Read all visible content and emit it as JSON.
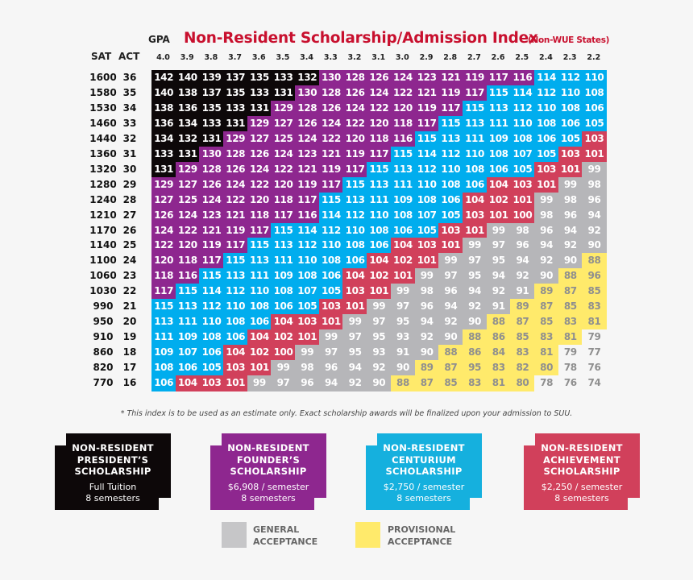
{
  "header": {
    "gpa_label": "GPA",
    "title": "Non-Resident Scholarship/Admission Index",
    "subtitle": "(Non-WUE States)",
    "sat_label": "SAT",
    "act_label": "ACT"
  },
  "chart_data": {
    "type": "table",
    "gpa": [
      "4.0",
      "3.9",
      "3.8",
      "3.7",
      "3.6",
      "3.5",
      "3.4",
      "3.3",
      "3.2",
      "3.1",
      "3.0",
      "2.9",
      "2.8",
      "2.7",
      "2.6",
      "2.5",
      "2.4",
      "2.3",
      "2.2"
    ],
    "rows": [
      {
        "sat": "1600",
        "act": "36",
        "values": [
          142,
          140,
          139,
          137,
          135,
          133,
          132,
          130,
          128,
          126,
          124,
          123,
          121,
          119,
          117,
          116,
          114,
          112,
          110
        ]
      },
      {
        "sat": "1580",
        "act": "35",
        "values": [
          140,
          138,
          137,
          135,
          133,
          131,
          130,
          128,
          126,
          124,
          122,
          121,
          119,
          117,
          115,
          114,
          112,
          110,
          108
        ]
      },
      {
        "sat": "1530",
        "act": "34",
        "values": [
          138,
          136,
          135,
          133,
          131,
          129,
          128,
          126,
          124,
          122,
          120,
          119,
          117,
          115,
          113,
          112,
          110,
          108,
          106
        ]
      },
      {
        "sat": "1460",
        "act": "33",
        "values": [
          136,
          134,
          133,
          131,
          129,
          127,
          126,
          124,
          122,
          120,
          118,
          117,
          115,
          113,
          111,
          110,
          108,
          106,
          105
        ]
      },
      {
        "sat": "1440",
        "act": "32",
        "values": [
          134,
          132,
          131,
          129,
          127,
          125,
          124,
          122,
          120,
          118,
          116,
          115,
          113,
          111,
          109,
          108,
          106,
          105,
          103
        ]
      },
      {
        "sat": "1360",
        "act": "31",
        "values": [
          133,
          131,
          130,
          128,
          126,
          124,
          123,
          121,
          119,
          117,
          115,
          114,
          112,
          110,
          108,
          107,
          105,
          103,
          101
        ]
      },
      {
        "sat": "1320",
        "act": "30",
        "values": [
          131,
          129,
          128,
          126,
          124,
          122,
          121,
          119,
          117,
          115,
          113,
          112,
          110,
          108,
          106,
          105,
          103,
          101,
          99
        ]
      },
      {
        "sat": "1280",
        "act": "29",
        "values": [
          129,
          127,
          126,
          124,
          122,
          120,
          119,
          117,
          115,
          113,
          111,
          110,
          108,
          106,
          104,
          103,
          101,
          99,
          98
        ]
      },
      {
        "sat": "1240",
        "act": "28",
        "values": [
          127,
          125,
          124,
          122,
          120,
          118,
          117,
          115,
          113,
          111,
          109,
          108,
          106,
          104,
          102,
          101,
          99,
          98,
          96
        ]
      },
      {
        "sat": "1210",
        "act": "27",
        "values": [
          126,
          124,
          123,
          121,
          118,
          117,
          116,
          114,
          112,
          110,
          108,
          107,
          105,
          103,
          101,
          100,
          98,
          96,
          94
        ]
      },
      {
        "sat": "1170",
        "act": "26",
        "values": [
          124,
          122,
          121,
          119,
          117,
          115,
          114,
          112,
          110,
          108,
          106,
          105,
          103,
          101,
          99,
          98,
          96,
          94,
          92
        ]
      },
      {
        "sat": "1140",
        "act": "25",
        "values": [
          122,
          120,
          119,
          117,
          115,
          113,
          112,
          110,
          108,
          106,
          104,
          103,
          101,
          99,
          97,
          96,
          94,
          92,
          90
        ]
      },
      {
        "sat": "1100",
        "act": "24",
        "values": [
          120,
          118,
          117,
          115,
          113,
          111,
          110,
          108,
          106,
          104,
          102,
          101,
          99,
          97,
          95,
          94,
          92,
          90,
          88
        ]
      },
      {
        "sat": "1060",
        "act": "23",
        "values": [
          118,
          116,
          115,
          113,
          111,
          109,
          108,
          106,
          104,
          102,
          101,
          99,
          97,
          95,
          94,
          92,
          90,
          88,
          96
        ]
      },
      {
        "sat": "1030",
        "act": "22",
        "values": [
          117,
          115,
          114,
          112,
          110,
          108,
          107,
          105,
          103,
          101,
          99,
          98,
          96,
          94,
          92,
          91,
          89,
          87,
          85
        ]
      },
      {
        "sat": "990",
        "act": "21",
        "values": [
          115,
          113,
          112,
          110,
          108,
          106,
          105,
          103,
          101,
          99,
          97,
          96,
          94,
          92,
          91,
          89,
          87,
          85,
          83
        ]
      },
      {
        "sat": "950",
        "act": "20",
        "values": [
          113,
          111,
          110,
          108,
          106,
          104,
          103,
          101,
          99,
          97,
          95,
          94,
          92,
          90,
          88,
          87,
          85,
          83,
          81
        ]
      },
      {
        "sat": "910",
        "act": "19",
        "values": [
          111,
          109,
          108,
          106,
          104,
          102,
          101,
          99,
          97,
          95,
          93,
          92,
          90,
          88,
          86,
          85,
          83,
          81,
          79
        ]
      },
      {
        "sat": "860",
        "act": "18",
        "values": [
          109,
          107,
          106,
          104,
          102,
          100,
          99,
          97,
          95,
          93,
          91,
          90,
          88,
          86,
          84,
          83,
          81,
          79,
          77
        ]
      },
      {
        "sat": "820",
        "act": "17",
        "values": [
          108,
          106,
          105,
          103,
          101,
          99,
          98,
          96,
          94,
          92,
          90,
          89,
          87,
          95,
          83,
          82,
          80,
          78,
          76
        ]
      },
      {
        "sat": "770",
        "act": "16",
        "values": [
          106,
          104,
          103,
          101,
          99,
          97,
          96,
          94,
          92,
          90,
          88,
          87,
          85,
          83,
          81,
          80,
          78,
          76,
          74
        ]
      }
    ],
    "tiers": [
      {
        "id": "president",
        "min": 131,
        "color": "#0d0809",
        "text": "#ffffff"
      },
      {
        "id": "founder",
        "min": 116,
        "color": "#8e278f",
        "text": "#ffffff"
      },
      {
        "id": "centurium",
        "min": 105,
        "color": "#00adee",
        "text": "#ffffff"
      },
      {
        "id": "achievement",
        "min": 100,
        "color": "#d1405b",
        "text": "#ffffff"
      },
      {
        "id": "general",
        "min": 90,
        "color": "#b6b6b9",
        "text": "#ffffff"
      },
      {
        "id": "provisional",
        "min": 80,
        "color": "#ffea6b",
        "text": "#8f8f8f"
      },
      {
        "id": "none",
        "min": 0,
        "color": "#f6f6f6",
        "text": "#8f8f8f"
      }
    ],
    "tier_overrides": [
      {
        "sat": "1060",
        "gpa": "2.2",
        "tier": "provisional"
      },
      {
        "sat": "820",
        "gpa": "2.7",
        "tier": "provisional"
      }
    ]
  },
  "footnote": "* This index is to be used as an estimate only. Exact scholarship awards will be finalized upon your admission to SUU.",
  "awards": [
    {
      "name1": "NON-RESIDENT",
      "name2": "PRESIDENT’S",
      "name3": "SCHOLARSHIP",
      "amount": "Full Tuition",
      "duration": "8 semesters",
      "color": "#0d0809"
    },
    {
      "name1": "NON-RESIDENT",
      "name2": "FOUNDER’S",
      "name3": "SCHOLARSHIP",
      "amount": "$6,908 / semester",
      "duration": "8 semesters",
      "color": "#8e278f"
    },
    {
      "name1": "NON-RESIDENT",
      "name2": "CENTURIUM",
      "name3": "SCHOLARSHIP",
      "amount": "$2,750 / semester",
      "duration": "8 semesters",
      "color": "#15b0de"
    },
    {
      "name1": "NON-RESIDENT",
      "name2": "ACHIEVEMENT",
      "name3": "SCHOLARSHIP",
      "amount": "$2,250 / semester",
      "duration": "8 semesters",
      "color": "#d1405b"
    }
  ],
  "acceptance": [
    {
      "line1": "GENERAL",
      "line2": "ACCEPTANCE",
      "color": "#c6c6c8"
    },
    {
      "line1": "PROVISIONAL",
      "line2": "ACCEPTANCE",
      "color": "#ffea6b"
    }
  ]
}
